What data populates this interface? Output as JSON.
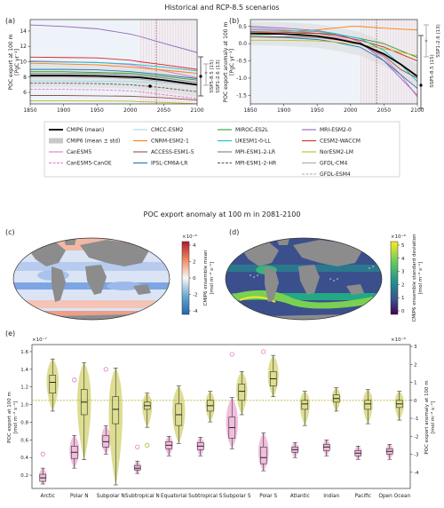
{
  "figure": {
    "title": "Historical and RCP-8.5 scenarios",
    "middle_title": "POC export anomaly at 100 m in 2081-2100"
  },
  "panel_a": {
    "label": "(a)",
    "ylabel": "POC export at 100 m\n[PgC yr⁻¹]",
    "xticks": [
      "1850",
      "1900",
      "1950",
      "2000",
      "2050",
      "2100"
    ],
    "yticks": [
      "6",
      "8",
      "10",
      "12",
      "14"
    ],
    "ssp585": "SSP5-8.5 (15)",
    "ssp126": "SSP1-2.6 (13)"
  },
  "panel_b": {
    "label": "(b)",
    "ylabel": "POC export anomaly at 100 m\n[PgC yr⁻¹]",
    "xticks": [
      "1850",
      "1900",
      "1950",
      "2000",
      "2050",
      "2100"
    ],
    "yticks": [
      "-1.5",
      "-1.0",
      "-0.5",
      "0.0",
      "0.5"
    ],
    "ssp585": "SSP5-8.5 (15)",
    "ssp126": "SSP1-2.6 (13)"
  },
  "legend": [
    {
      "name": "CMIP6 (mean)",
      "color": "#000000",
      "style": "thick"
    },
    {
      "name": "CMIP6 (mean ± std)",
      "color": "#c8c8c8",
      "style": "band"
    },
    {
      "name": "CanESM5",
      "color": "#e377c2",
      "style": "solid"
    },
    {
      "name": "CanESM5-CanOE",
      "color": "#e377c2",
      "style": "dashed"
    },
    {
      "name": "CMCC-ESM2",
      "color": "#9edae5",
      "style": "solid"
    },
    {
      "name": "CNRM-ESM2-1",
      "color": "#ff7f0e",
      "style": "solid"
    },
    {
      "name": "ACCESS-ESM1-5",
      "color": "#8c564b",
      "style": "solid"
    },
    {
      "name": "IPSL-CM6A-LR",
      "color": "#1f77b4",
      "style": "solid"
    },
    {
      "name": "MIROC-ES2L",
      "color": "#2ca02c",
      "style": "solid"
    },
    {
      "name": "UKESM1-0-LL",
      "color": "#17becf",
      "style": "solid"
    },
    {
      "name": "MPI-ESM1-2-LR",
      "color": "#7f7f7f",
      "style": "solid"
    },
    {
      "name": "MPI-ESM1-2-HR",
      "color": "#555555",
      "style": "dashed"
    },
    {
      "name": "MRI-ESM2-0",
      "color": "#9467bd",
      "style": "solid"
    },
    {
      "name": "CESM2-WACCM",
      "color": "#d62728",
      "style": "solid"
    },
    {
      "name": "NorESM2-LM",
      "color": "#bcbd22",
      "style": "solid"
    },
    {
      "name": "GFDL-CM4",
      "color": "#aaaaaa",
      "style": "solid"
    },
    {
      "name": "GFDL-ESM4",
      "color": "#aaaaaa",
      "style": "dashed"
    }
  ],
  "panel_c": {
    "label": "(c)",
    "cbar_label": "CMIP6 ensemble mean\n[mol m⁻² s⁻¹]",
    "cbar_scale": "×10⁻⁸",
    "cbar_ticks": [
      "4",
      "2",
      "0",
      "-2",
      "-4"
    ]
  },
  "panel_d": {
    "label": "(d)",
    "cbar_label": "CMIP6 ensemble standard deviation\n[mol m⁻² s⁻¹]",
    "cbar_scale": "×10⁻⁸",
    "cbar_ticks": [
      "5",
      "4",
      "3",
      "2",
      "1",
      "0"
    ]
  },
  "panel_e": {
    "label": "(e)",
    "left_scale": "×10⁻⁷",
    "right_scale": "×10⁻⁸",
    "left_ylabel": "POC export at 100 m\n[mol m⁻² s⁻¹]",
    "right_ylabel": "POC export anomaly at 100 m\n[mol m⁻² s⁻¹]",
    "left_ticks": [
      "1.6",
      "1.4",
      "1.2",
      "1.0",
      "0.8",
      "0.6",
      "0.4",
      "0.2"
    ],
    "right_ticks": [
      "3",
      "2",
      "1",
      "0",
      "-1",
      "-2",
      "-3",
      "-4"
    ]
  },
  "colors": {
    "abs": "#e78ac3",
    "anom": "#c2c43a",
    "band": "#d9d9d9"
  },
  "chart_data": [
    {
      "type": "line",
      "title": "(a)",
      "xlabel": "",
      "ylabel": "POC export at 100 m [PgC yr⁻¹]",
      "xlim": [
        1850,
        2100
      ],
      "ylim": [
        4.5,
        15.5
      ],
      "x": [
        1850,
        1900,
        1950,
        2000,
        2014,
        2050,
        2100
      ],
      "series": [
        {
          "name": "CMIP6 (mean)",
          "values": [
            8.2,
            8.2,
            8.15,
            8.0,
            7.95,
            7.6,
            7.0
          ]
        },
        {
          "name": "CanESM5",
          "values": [
            10.1,
            10.0,
            9.9,
            9.6,
            9.4,
            8.8,
            7.9
          ]
        },
        {
          "name": "CanESM5-CanOE",
          "values": [
            6.4,
            6.4,
            6.35,
            6.2,
            6.1,
            5.7,
            5.2
          ]
        },
        {
          "name": "CMCC-ESM2",
          "values": [
            7.5,
            7.5,
            7.45,
            7.4,
            7.35,
            7.2,
            6.9
          ]
        },
        {
          "name": "CNRM-ESM2-1",
          "values": [
            9.8,
            9.7,
            9.6,
            9.3,
            9.2,
            8.9,
            8.5
          ]
        },
        {
          "name": "ACCESS-ESM1-5",
          "values": [
            5.6,
            5.6,
            5.55,
            5.5,
            5.45,
            5.3,
            5.0
          ]
        },
        {
          "name": "IPSL-CM6A-LR",
          "values": [
            9.0,
            9.0,
            8.95,
            8.7,
            8.6,
            8.3,
            7.8
          ]
        },
        {
          "name": "MIROC-ES2L",
          "values": [
            8.7,
            8.7,
            8.6,
            8.5,
            8.4,
            8.1,
            7.6
          ]
        },
        {
          "name": "UKESM1-0-LL",
          "values": [
            10.0,
            9.95,
            9.9,
            9.7,
            9.6,
            9.3,
            8.8
          ]
        },
        {
          "name": "MPI-ESM1-2-LR",
          "values": [
            8.5,
            8.5,
            8.45,
            8.3,
            8.2,
            7.9,
            7.3
          ]
        },
        {
          "name": "MPI-ESM1-2-HR",
          "values": [
            7.2,
            7.2,
            7.15,
            7.0,
            6.9,
            6.6,
            6.1
          ]
        },
        {
          "name": "MRI-ESM2-0",
          "values": [
            14.8,
            14.6,
            14.3,
            13.6,
            13.3,
            12.4,
            11.2
          ]
        },
        {
          "name": "CESM2-WACCM",
          "values": [
            10.6,
            10.55,
            10.5,
            10.2,
            10.0,
            9.6,
            9.0
          ]
        },
        {
          "name": "NorESM2-LM",
          "values": [
            4.9,
            4.9,
            4.88,
            4.85,
            4.8,
            4.7,
            4.5
          ]
        },
        {
          "name": "GFDL-CM4",
          "values": [
            8.0,
            8.0,
            7.95,
            7.8,
            7.7,
            7.4,
            6.9
          ]
        },
        {
          "name": "GFDL-ESM4",
          "values": [
            8.3,
            8.3,
            8.25,
            8.1,
            8.0,
            7.7,
            7.1
          ]
        }
      ]
    },
    {
      "type": "line",
      "title": "(b)",
      "xlabel": "",
      "ylabel": "POC export anomaly at 100 m [PgC yr⁻¹]",
      "xlim": [
        1850,
        2100
      ],
      "ylim": [
        -1.75,
        0.7
      ],
      "x": [
        1850,
        1900,
        1950,
        1975,
        2000,
        2014,
        2050,
        2075,
        2100
      ],
      "series": [
        {
          "name": "CMIP6 (mean)",
          "values": [
            0.3,
            0.28,
            0.22,
            0.15,
            0.05,
            0.0,
            -0.3,
            -0.6,
            -0.95
          ]
        },
        {
          "name": "CanESM5",
          "values": [
            0.45,
            0.4,
            0.3,
            0.2,
            0.08,
            0.0,
            -0.4,
            -0.9,
            -1.55
          ]
        },
        {
          "name": "CNRM-ESM2-1",
          "values": [
            0.3,
            0.35,
            0.4,
            0.45,
            0.5,
            0.5,
            0.45,
            0.42,
            0.4
          ]
        },
        {
          "name": "MIROC-ES2L",
          "values": [
            0.25,
            0.28,
            0.3,
            0.28,
            0.2,
            0.15,
            0.0,
            -0.2,
            -0.4
          ]
        },
        {
          "name": "MRI-ESM2-0",
          "values": [
            0.5,
            0.45,
            0.38,
            0.3,
            0.15,
            0.05,
            -0.5,
            -1.0,
            -1.5
          ]
        },
        {
          "name": "CESM2-WACCM",
          "values": [
            0.35,
            0.33,
            0.3,
            0.25,
            0.15,
            0.1,
            -0.1,
            -0.3,
            -0.5
          ]
        },
        {
          "name": "IPSL-CM6A-LR",
          "values": [
            0.2,
            0.18,
            0.12,
            0.05,
            -0.05,
            -0.1,
            -0.5,
            -0.9,
            -1.3
          ]
        },
        {
          "name": "UKESM1-0-LL",
          "values": [
            0.4,
            0.38,
            0.35,
            0.3,
            0.2,
            0.15,
            -0.2,
            -0.6,
            -1.1
          ]
        },
        {
          "name": "ACCESS-ESM1-5",
          "values": [
            0.2,
            0.2,
            0.18,
            0.12,
            0.05,
            0.0,
            -0.35,
            -0.75,
            -1.0
          ]
        },
        {
          "name": "NorESM2-LM",
          "values": [
            0.1,
            0.1,
            0.08,
            0.05,
            0.0,
            -0.02,
            -0.15,
            -0.25,
            -0.35
          ]
        }
      ]
    },
    {
      "type": "box",
      "title": "(e)",
      "categories": [
        "Arctic",
        "Polar N",
        "Subpolar N",
        "Subtropical N",
        "Equatorial",
        "Subtropical S",
        "Subpolar S",
        "Polar S",
        "Atlantic",
        "Indian",
        "Pacific",
        "Open Ocean"
      ],
      "category_colors": [
        "#e377c2",
        "#aaaaaa",
        "#aaaaaa",
        "#000000",
        "#000000",
        "#000000",
        "#aaaaaa",
        "#aaaaaa",
        "#1f77b4",
        "#ff7f0e",
        "#2ca02c",
        "#000000"
      ],
      "left_axis": {
        "label": "POC export at 100 m [mol m⁻² s⁻¹]",
        "scale": "1e-7",
        "ylim": [
          0.05,
          1.68
        ]
      },
      "right_axis": {
        "label": "POC export anomaly at 100 m [mol m⁻² s⁻¹]",
        "scale": "1e-8",
        "ylim": [
          -4.9,
          3.1
        ]
      },
      "abs_series": [
        {
          "min": 0.1,
          "q1": 0.13,
          "med": 0.17,
          "q3": 0.21,
          "max": 0.28,
          "outlier": 0.44
        },
        {
          "min": 0.28,
          "q1": 0.39,
          "med": 0.46,
          "q3": 0.53,
          "max": 0.65,
          "outlier": 1.28
        },
        {
          "min": 0.44,
          "q1": 0.52,
          "med": 0.58,
          "q3": 0.65,
          "max": 0.76,
          "outlier": 1.4
        },
        {
          "min": 0.22,
          "q1": 0.26,
          "med": 0.28,
          "q3": 0.31,
          "max": 0.36,
          "outlier": 0.52
        },
        {
          "min": 0.42,
          "q1": 0.5,
          "med": 0.54,
          "q3": 0.58,
          "max": 0.64,
          "outlier": null
        },
        {
          "min": 0.42,
          "q1": 0.49,
          "med": 0.53,
          "q3": 0.57,
          "max": 0.63,
          "outlier": null
        },
        {
          "min": 0.5,
          "q1": 0.62,
          "med": 0.74,
          "q3": 0.86,
          "max": 1.08,
          "outlier": 1.57
        },
        {
          "min": 0.25,
          "q1": 0.33,
          "med": 0.4,
          "q3": 0.52,
          "max": 0.68,
          "outlier": 1.6
        },
        {
          "min": 0.4,
          "q1": 0.46,
          "med": 0.49,
          "q3": 0.52,
          "max": 0.57,
          "outlier": null
        },
        {
          "min": 0.42,
          "q1": 0.48,
          "med": 0.52,
          "q3": 0.55,
          "max": 0.6,
          "outlier": null
        },
        {
          "min": 0.38,
          "q1": 0.42,
          "med": 0.45,
          "q3": 0.48,
          "max": 0.53,
          "outlier": null
        },
        {
          "min": 0.38,
          "q1": 0.44,
          "med": 0.47,
          "q3": 0.5,
          "max": 0.55,
          "outlier": null
        }
      ],
      "anom_series": [
        {
          "min": -0.6,
          "q1": 0.4,
          "med": 1.0,
          "q3": 1.4,
          "max": 2.3,
          "outlier": null
        },
        {
          "min": -3.3,
          "q1": -0.8,
          "med": -0.1,
          "q3": 0.6,
          "max": 2.1,
          "outlier": null
        },
        {
          "min": -4.7,
          "q1": -1.3,
          "med": -0.5,
          "q3": 0.2,
          "max": 1.8,
          "outlier": null
        },
        {
          "min": -1.5,
          "q1": -0.5,
          "med": -0.3,
          "q3": -0.1,
          "max": 0.4,
          "outlier": -2.5
        },
        {
          "min": -2.4,
          "q1": -1.4,
          "med": -0.8,
          "q3": -0.2,
          "max": 0.8,
          "outlier": null
        },
        {
          "min": -1.2,
          "q1": -0.6,
          "med": -0.3,
          "q3": 0.0,
          "max": 0.5,
          "outlier": null
        },
        {
          "min": -0.8,
          "q1": 0.0,
          "med": 0.5,
          "q3": 0.9,
          "max": 1.6,
          "outlier": null
        },
        {
          "min": 0.2,
          "q1": 0.8,
          "med": 1.2,
          "q3": 1.6,
          "max": 2.5,
          "outlier": null
        },
        {
          "min": -1.4,
          "q1": -0.5,
          "med": -0.2,
          "q3": 0.0,
          "max": 0.5,
          "outlier": null
        },
        {
          "min": -0.6,
          "q1": -0.1,
          "med": 0.1,
          "q3": 0.3,
          "max": 0.7,
          "outlier": null
        },
        {
          "min": -1.3,
          "q1": -0.5,
          "med": -0.2,
          "q3": 0.0,
          "max": 0.6,
          "outlier": null
        },
        {
          "min": -1.1,
          "q1": -0.4,
          "med": -0.2,
          "q3": 0.0,
          "max": 0.5,
          "outlier": null
        }
      ],
      "zero_line": 0
    }
  ]
}
